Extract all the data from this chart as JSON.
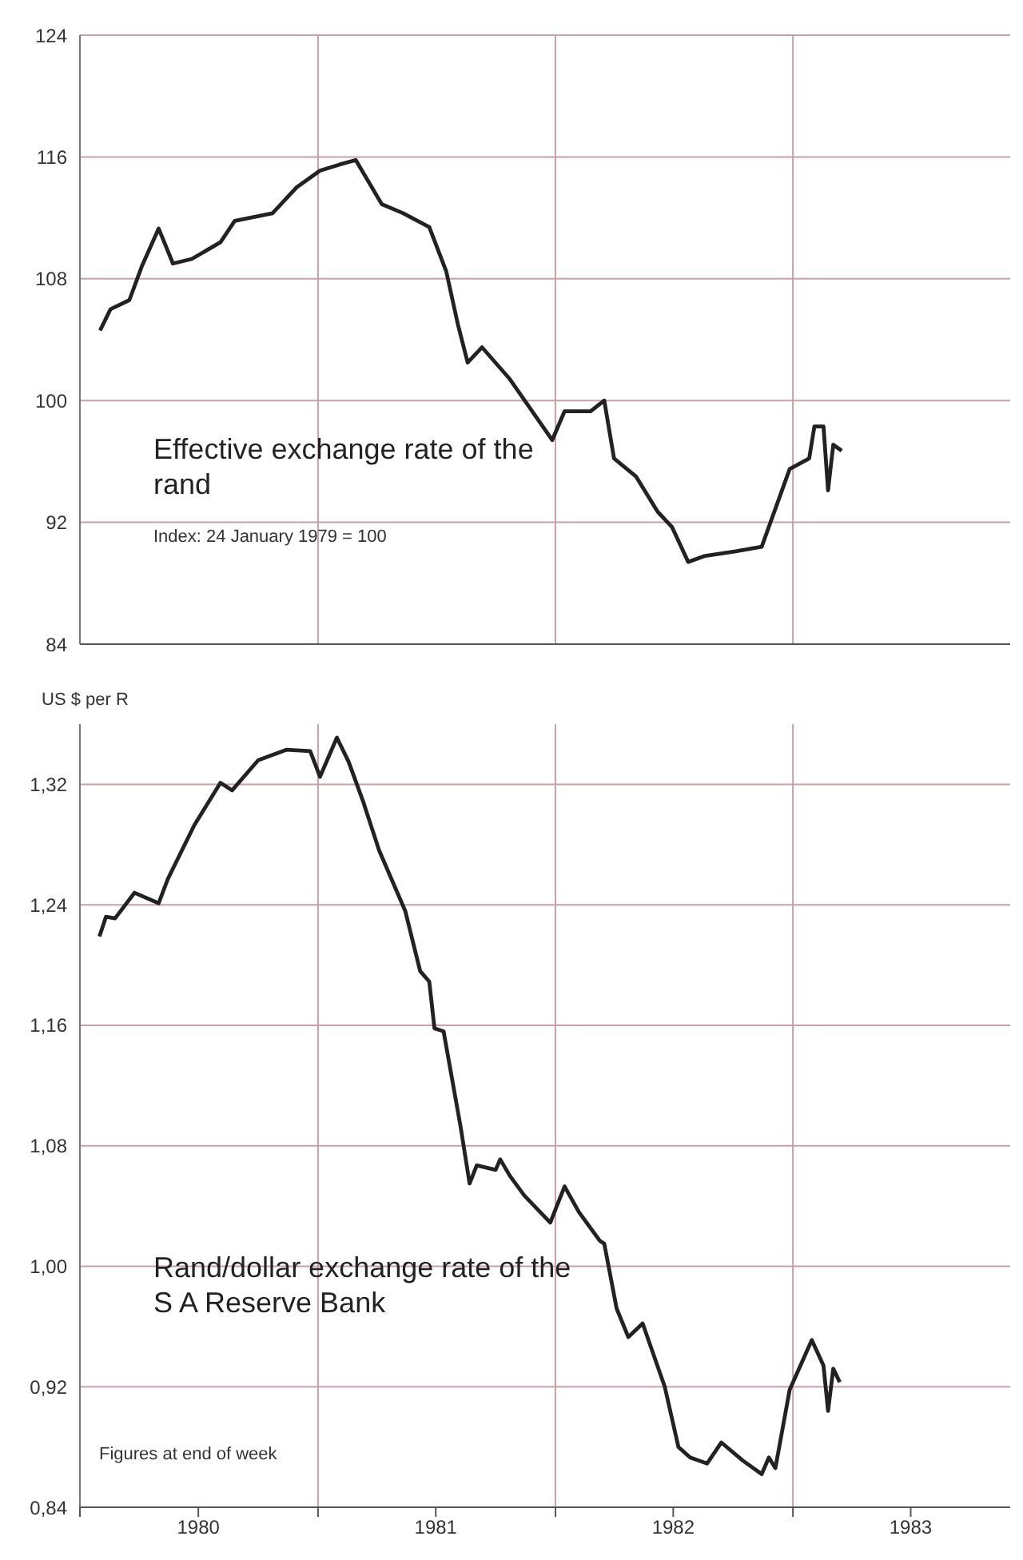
{
  "chart_data": [
    {
      "type": "line",
      "title": "Effective exchange rate of the rand",
      "subtitle": "Index: 24 January 1979 = 100",
      "x": [
        "1980-02-01",
        "1980-02-17",
        "1980-03-17",
        "1980-04-05",
        "1980-05-01",
        "1980-05-23",
        "1980-06-21",
        "1980-08-04",
        "1980-08-26",
        "1980-10-23",
        "1980-11-29",
        "1981-01-04",
        "1981-02-03",
        "1981-02-28",
        "1981-04-09",
        "1981-05-12",
        "1981-06-21",
        "1981-07-17",
        "1981-08-04",
        "1981-08-19",
        "1981-09-10",
        "1981-10-23",
        "1981-12-27",
        "1982-01-15",
        "1982-02-24",
        "1982-03-17",
        "1982-04-01",
        "1982-05-05",
        "1982-06-07",
        "1982-06-29",
        "1982-07-24",
        "1982-08-19",
        "1982-10-05",
        "1982-11-14",
        "1982-12-27",
        "1983-01-26",
        "1983-02-03",
        "1983-02-17",
        "1983-02-24",
        "1983-03-04",
        "1983-03-17"
      ],
      "series": [
        {
          "color": "#222222",
          "values": [
            104.6,
            106.0,
            106.6,
            108.8,
            111.3,
            109.0,
            109.3,
            110.4,
            111.8,
            112.3,
            114.0,
            115.1,
            115.5,
            115.8,
            112.9,
            112.3,
            111.4,
            108.5,
            105.0,
            102.5,
            103.5,
            101.4,
            97.4,
            99.3,
            99.3,
            100.0,
            96.2,
            95.0,
            92.7,
            91.7,
            89.4,
            89.8,
            90.1,
            90.4,
            95.5,
            96.2,
            98.3,
            98.3,
            94.1,
            97.1,
            96.7
          ]
        }
      ],
      "xlim": [
        "1980-01-01",
        "1983-12-01"
      ],
      "xticks": [
        {
          "value": "1980-01-01",
          "label": null
        },
        {
          "value": "1981-01-01",
          "label": null
        },
        {
          "value": "1982-01-01",
          "label": null
        },
        {
          "value": "1983-01-01",
          "label": null
        }
      ],
      "ylim": [
        84,
        124
      ],
      "yticks": [
        84,
        92,
        100,
        108,
        116,
        124
      ],
      "grid": true,
      "tick_labels": "y"
    },
    {
      "type": "line",
      "title": "Rand/dollar exchange rate of the S A Reserve Bank",
      "ylabel": "US $ per R",
      "annotations": [
        "Figures at end of week"
      ],
      "x": [
        "1980-01-31",
        "1980-02-10",
        "1980-02-24",
        "1980-03-25",
        "1980-05-01",
        "1980-05-15",
        "1980-06-25",
        "1980-08-04",
        "1980-08-22",
        "1980-10-01",
        "1980-11-14",
        "1980-12-20",
        "1981-01-04",
        "1981-01-30",
        "1981-02-17",
        "1981-03-11",
        "1981-04-05",
        "1981-05-15",
        "1981-06-07",
        "1981-06-21",
        "1981-06-29",
        "1981-07-13",
        "1981-08-08",
        "1981-08-22",
        "1981-09-02",
        "1981-10-01",
        "1981-10-08",
        "1981-10-23",
        "1981-11-14",
        "1981-12-24",
        "1982-01-15",
        "1982-02-06",
        "1982-03-10",
        "1982-03-17",
        "1982-04-05",
        "1982-04-23",
        "1982-05-15",
        "1982-06-18",
        "1982-07-09",
        "1982-07-27",
        "1982-08-22",
        "1982-09-13",
        "1982-10-16",
        "1982-11-14",
        "1982-11-25",
        "1982-12-05",
        "1982-12-27",
        "1983-01-30",
        "1983-02-17",
        "1983-02-24",
        "1983-03-04",
        "1983-03-14"
      ],
      "series": [
        {
          "color": "#222222",
          "values": [
            1.219,
            1.232,
            1.231,
            1.248,
            1.241,
            1.257,
            1.293,
            1.321,
            1.316,
            1.336,
            1.343,
            1.342,
            1.325,
            1.351,
            1.335,
            1.309,
            1.276,
            1.236,
            1.196,
            1.189,
            1.158,
            1.156,
            1.093,
            1.055,
            1.067,
            1.064,
            1.071,
            1.06,
            1.047,
            1.029,
            1.053,
            1.036,
            1.017,
            1.015,
            0.972,
            0.953,
            0.962,
            0.92,
            0.88,
            0.873,
            0.869,
            0.883,
            0.871,
            0.862,
            0.873,
            0.866,
            0.918,
            0.951,
            0.934,
            0.904,
            0.932,
            0.923
          ]
        }
      ],
      "xlim": [
        "1980-01-01",
        "1983-12-01"
      ],
      "xticks": [
        {
          "value": "1980-01-01",
          "label": null
        },
        {
          "value": "1980-07-01",
          "label": "1980"
        },
        {
          "value": "1981-01-01",
          "label": null
        },
        {
          "value": "1981-07-01",
          "label": "1981"
        },
        {
          "value": "1982-01-01",
          "label": null
        },
        {
          "value": "1982-07-01",
          "label": "1982"
        },
        {
          "value": "1983-01-01",
          "label": null
        },
        {
          "value": "1983-07-01",
          "label": "1983"
        }
      ],
      "ylim": [
        0.84,
        1.36
      ],
      "yticks": [
        {
          "value": 0.84,
          "label": "0,84"
        },
        {
          "value": 0.92,
          "label": "0,92"
        },
        {
          "value": 1.0,
          "label": "1,00"
        },
        {
          "value": 1.08,
          "label": "1,08"
        },
        {
          "value": 1.16,
          "label": "1,16"
        },
        {
          "value": 1.24,
          "label": "1,24"
        },
        {
          "value": 1.32,
          "label": "1,32"
        }
      ],
      "grid": true
    }
  ]
}
